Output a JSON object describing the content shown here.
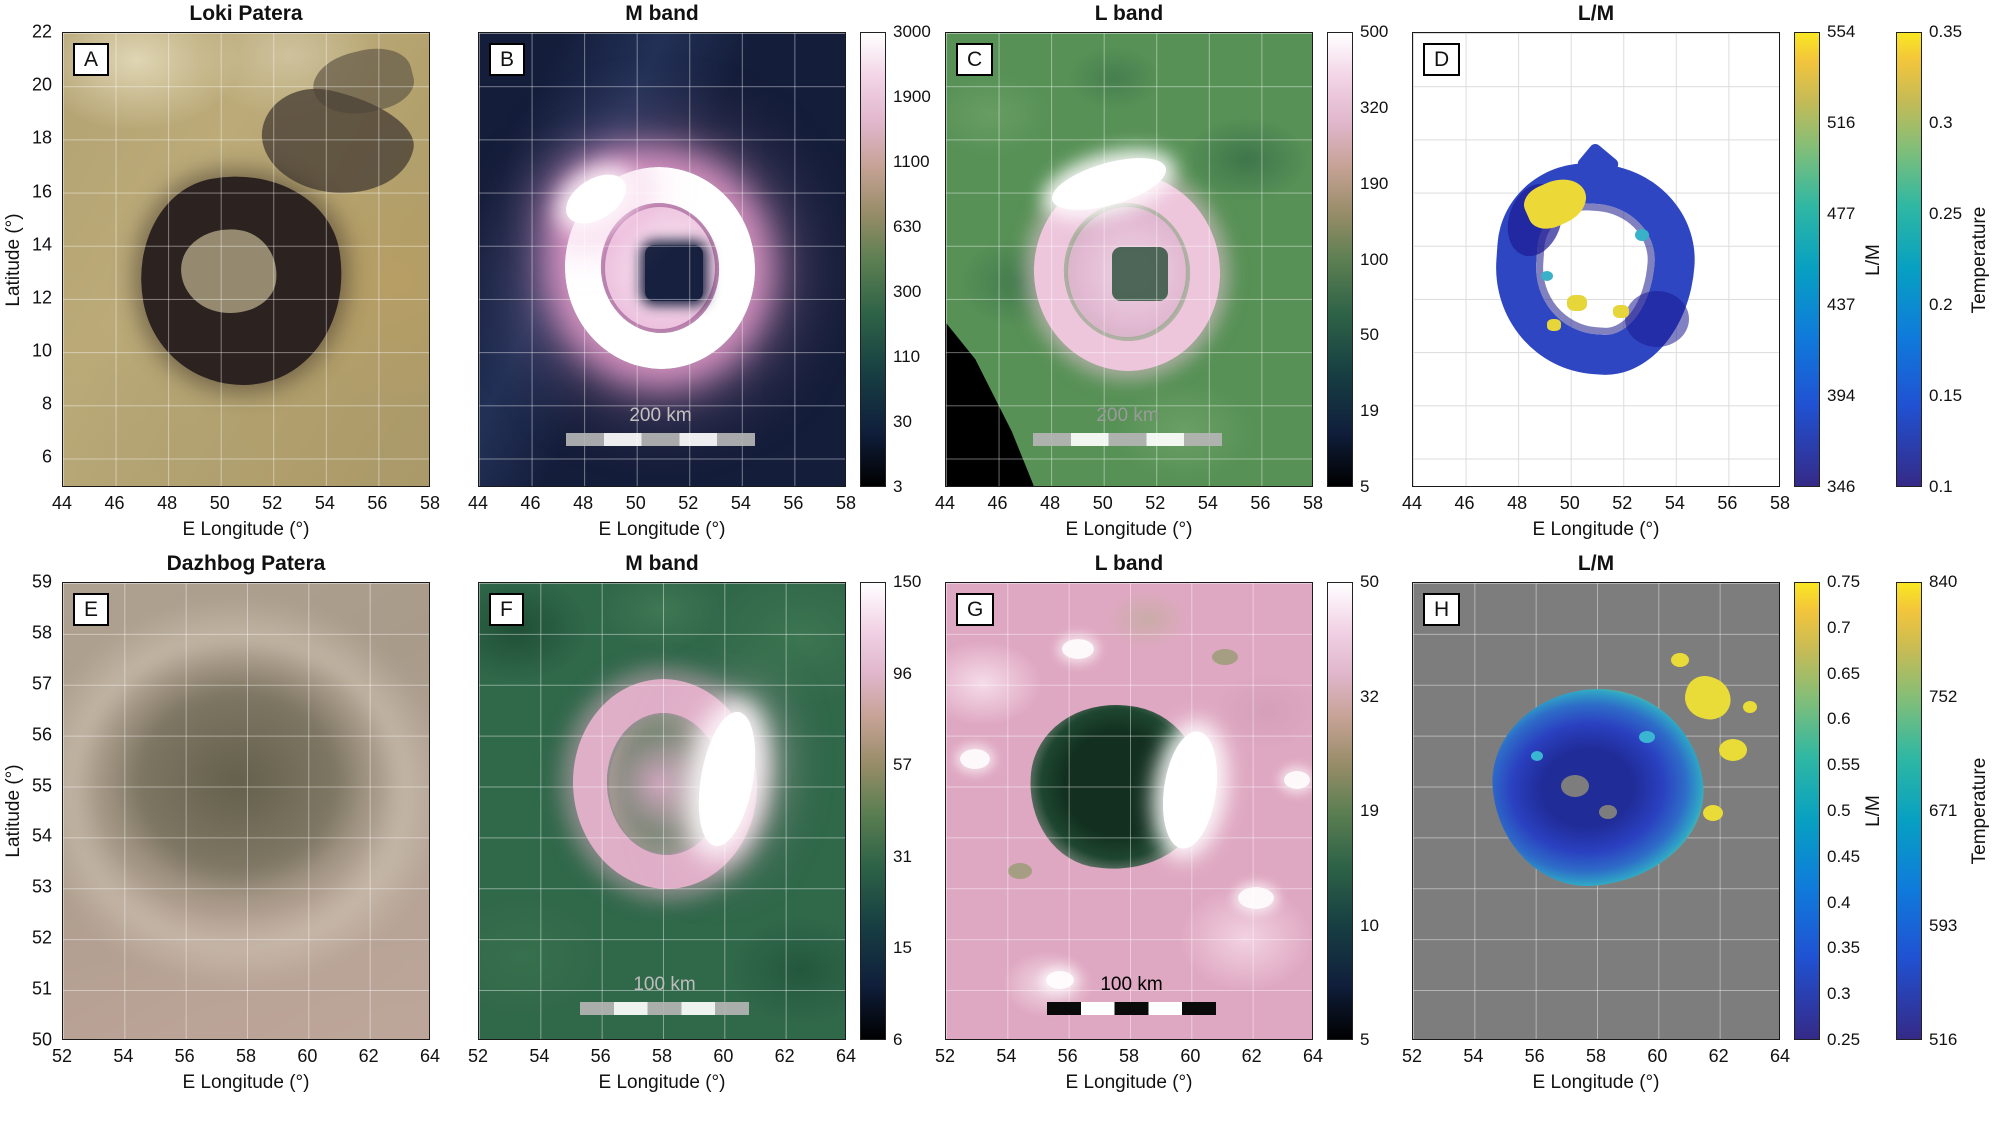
{
  "chart_data": [
    {
      "panel": "A",
      "type": "image",
      "title": "Loki Patera",
      "xlabel": "E Longitude (°)",
      "ylabel": "Latitude (°)",
      "xlim": [
        44,
        58
      ],
      "ylim": [
        5.5,
        22
      ],
      "grid": true,
      "xticks": [
        44,
        46,
        48,
        50,
        52,
        54,
        56,
        58
      ],
      "yticks": [
        22,
        20,
        18,
        16,
        14,
        12,
        10,
        8,
        6
      ],
      "description": "Visible-light basemap: dark horseshoe-shaped Loki Patera with lighter central island on tan/olive terrain; dark gray patches to the northeast"
    },
    {
      "panel": "B",
      "type": "heatmap",
      "title": "M band",
      "xlabel": "E Longitude (°)",
      "xlim": [
        44,
        58
      ],
      "grid": true,
      "xticks": [
        44,
        46,
        48,
        50,
        52,
        54,
        56,
        58
      ],
      "colorbar": {
        "ticks": [
          3000,
          1900,
          1100,
          630,
          300,
          110,
          30,
          3
        ],
        "range": [
          3,
          3000
        ]
      },
      "colormap": "black-navy-green-pink-white (cubehelix-like)",
      "scalebar_label": "200 km",
      "description": "M-band radiance map: bright white/pink ring around a dark center square on a dark navy background"
    },
    {
      "panel": "C",
      "type": "heatmap",
      "title": "L band",
      "xlabel": "E Longitude (°)",
      "xlim": [
        44,
        58
      ],
      "grid": true,
      "xticks": [
        44,
        46,
        48,
        50,
        52,
        54,
        56,
        58
      ],
      "colorbar": {
        "ticks": [
          500,
          320,
          190,
          100,
          50,
          19,
          5
        ],
        "range": [
          5,
          500
        ]
      },
      "colormap": "black-navy-green-pink-white (cubehelix-like)",
      "scalebar_label": "200 km",
      "description": "L-band radiance map: pink ring with bright white northern arc on mottled green background; black no-data wedge at lower left"
    },
    {
      "panel": "D",
      "type": "heatmap",
      "title": "L/M",
      "xlabel": "E Longitude (°)",
      "xlim": [
        44,
        58
      ],
      "grid": true,
      "xticks": [
        44,
        46,
        48,
        50,
        52,
        54,
        56,
        58
      ],
      "colorbar_left": {
        "label": "L/M",
        "ticks": [
          554,
          516,
          477,
          437,
          394,
          346
        ]
      },
      "colorbar_right": {
        "label": "Temperature",
        "ticks": [
          0.35,
          0.3,
          0.25,
          0.2,
          0.15,
          0.1
        ]
      },
      "colormap": "parula (dark blue to green to yellow)",
      "description": "L/M ratio map: ring of blue pixels on white background with yellow patches at the northwest rim and small yellow spots along the inner edge"
    },
    {
      "panel": "E",
      "type": "image",
      "title": "Dazhbog Patera",
      "xlabel": "E Longitude (°)",
      "ylabel": "Latitude (°)",
      "xlim": [
        52,
        64
      ],
      "ylim": [
        50,
        59
      ],
      "grid": true,
      "xticks": [
        52,
        54,
        56,
        58,
        60,
        62,
        64
      ],
      "yticks": [
        59,
        58,
        57,
        56,
        55,
        54,
        53,
        52,
        51,
        50
      ],
      "description": "Blurred visible-light basemap: dark circular Dazhbog Patera with faint lighter halo on gray-tan terrain"
    },
    {
      "panel": "F",
      "type": "heatmap",
      "title": "M band",
      "xlabel": "E Longitude (°)",
      "xlim": [
        52,
        64
      ],
      "grid": true,
      "xticks": [
        52,
        54,
        56,
        58,
        60,
        62,
        64
      ],
      "colorbar": {
        "ticks": [
          150,
          96,
          57,
          31,
          15,
          6
        ],
        "range": [
          6,
          150
        ]
      },
      "colormap": "black-navy-green-pink-white (cubehelix-like)",
      "scalebar_label": "100 km",
      "description": "M-band radiance map: pink ring with bright white eastern arc on mottled green background"
    },
    {
      "panel": "G",
      "type": "heatmap",
      "title": "L band",
      "xlabel": "E Longitude (°)",
      "xlim": [
        52,
        64
      ],
      "grid": true,
      "xticks": [
        52,
        54,
        56,
        58,
        60,
        62,
        64
      ],
      "colorbar": {
        "ticks": [
          50,
          32,
          19,
          10,
          5
        ],
        "range": [
          5,
          50
        ]
      },
      "colormap": "black-navy-green-pink-white (cubehelix-like)",
      "scalebar_label": "100 km",
      "description": "L-band radiance map: dark patera interior with bright white eastern rim and scattered white patches on mottled pink background"
    },
    {
      "panel": "H",
      "type": "heatmap",
      "title": "L/M",
      "xlabel": "E Longitude (°)",
      "xlim": [
        52,
        64
      ],
      "grid": true,
      "xticks": [
        52,
        54,
        56,
        58,
        60,
        62,
        64
      ],
      "colorbar_left": {
        "label": "L/M",
        "ticks": [
          0.75,
          0.7,
          0.65,
          0.6,
          0.55,
          0.5,
          0.45,
          0.4,
          0.35,
          0.3,
          0.25
        ]
      },
      "colorbar_right": {
        "label": "Temperature",
        "ticks": [
          840,
          752,
          671,
          593,
          516
        ]
      },
      "colormap": "parula (dark blue to green to yellow)",
      "description": "L/M ratio map: blue patera-filling patch with cyan speckles and yellow fringe, plus outlying yellow spots to the northeast, on gray background"
    }
  ]
}
